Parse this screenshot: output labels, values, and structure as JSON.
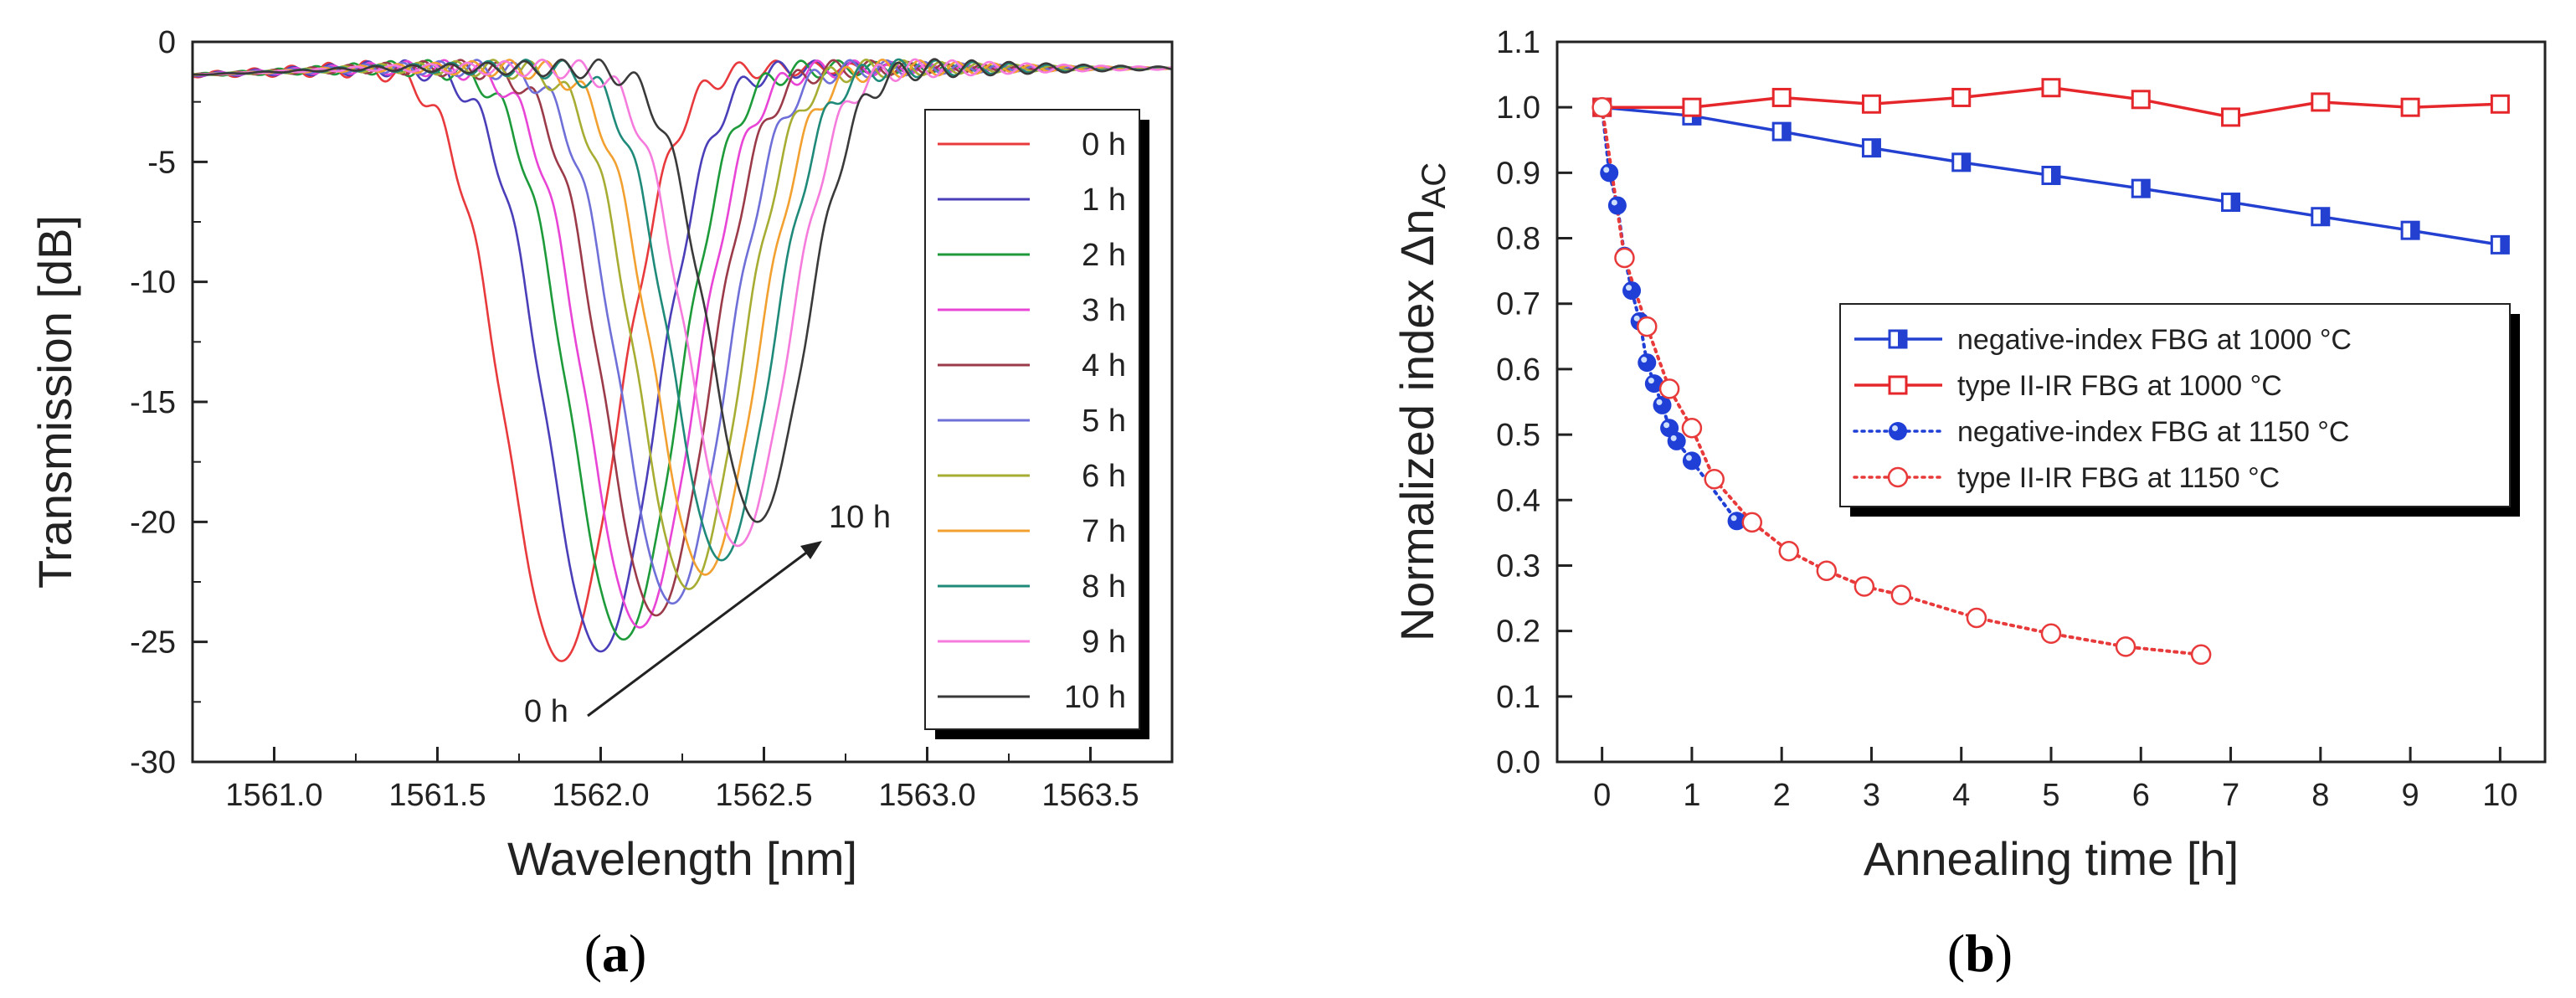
{
  "chart_data": [
    {
      "type": "line",
      "panel_label_open": "(",
      "panel_label_letter": "a",
      "panel_label_close": ")",
      "xlabel": "Wavelength [nm]",
      "ylabel": "Transmission [dB]",
      "xlim": [
        1560.75,
        1563.75
      ],
      "ylim": [
        -30,
        0
      ],
      "x_ticks": [
        1561.0,
        1561.5,
        1562.0,
        1562.5,
        1563.0,
        1563.5
      ],
      "x_tick_labels": [
        "1561.0",
        "1561.5",
        "1562.0",
        "1562.5",
        "1563.0",
        "1563.5"
      ],
      "y_ticks": [
        0,
        -5,
        -10,
        -15,
        -20,
        -25,
        -30
      ],
      "y_tick_labels": [
        "0",
        "-5",
        "-10",
        "-15",
        "-20",
        "-25",
        "-30"
      ],
      "series": [
        {
          "name": "0 h",
          "color": "#e8393c",
          "center": 1561.88,
          "depth": -25.8,
          "fwhm": 0.4
        },
        {
          "name": "1 h",
          "color": "#4a3fb8",
          "center": 1562.0,
          "depth": -25.4,
          "fwhm": 0.39
        },
        {
          "name": "2 h",
          "color": "#1d9a3a",
          "center": 1562.07,
          "depth": -24.9,
          "fwhm": 0.38
        },
        {
          "name": "3 h",
          "color": "#e844d6",
          "center": 1562.12,
          "depth": -24.4,
          "fwhm": 0.38
        },
        {
          "name": "4 h",
          "color": "#9b3b4a",
          "center": 1562.17,
          "depth": -23.9,
          "fwhm": 0.37
        },
        {
          "name": "5 h",
          "color": "#6f6fd8",
          "center": 1562.22,
          "depth": -23.4,
          "fwhm": 0.37
        },
        {
          "name": "6 h",
          "color": "#a7ad33",
          "center": 1562.27,
          "depth": -22.8,
          "fwhm": 0.36
        },
        {
          "name": "7 h",
          "color": "#f2a030",
          "center": 1562.32,
          "depth": -22.2,
          "fwhm": 0.36
        },
        {
          "name": "8 h",
          "color": "#1f8a7a",
          "center": 1562.37,
          "depth": -21.6,
          "fwhm": 0.35
        },
        {
          "name": "9 h",
          "color": "#f57bdc",
          "center": 1562.42,
          "depth": -21.0,
          "fwhm": 0.35
        },
        {
          "name": "10 h",
          "color": "#3a3a3a",
          "center": 1562.48,
          "depth": -20.0,
          "fwhm": 0.34
        }
      ],
      "annotations": [
        {
          "text": "10 h",
          "x": 1562.61,
          "y": -18.9
        },
        {
          "text": "0 h",
          "x": 1561.85,
          "y": -28.7
        }
      ],
      "legend_position": "right",
      "grid": false
    },
    {
      "type": "line",
      "panel_label_open": "(",
      "panel_label_letter": "b",
      "panel_label_close": ")",
      "xlabel": "Annealing time [h]",
      "ylabel_main": "Normalized index Δn",
      "ylabel_sub": "AC",
      "xlim": [
        -0.5,
        10.5
      ],
      "ylim": [
        0.0,
        1.1
      ],
      "x_ticks": [
        0,
        1,
        2,
        3,
        4,
        5,
        6,
        7,
        8,
        9,
        10
      ],
      "x_tick_labels": [
        "0",
        "1",
        "2",
        "3",
        "4",
        "5",
        "6",
        "7",
        "8",
        "9",
        "10"
      ],
      "y_ticks": [
        0.0,
        0.1,
        0.2,
        0.3,
        0.4,
        0.5,
        0.6,
        0.7,
        0.8,
        0.9,
        1.0,
        1.1
      ],
      "y_tick_labels": [
        "0.0",
        "0.1",
        "0.2",
        "0.3",
        "0.4",
        "0.5",
        "0.6",
        "0.7",
        "0.8",
        "0.9",
        "1.0",
        "1.1"
      ],
      "series": [
        {
          "name": "negative-index FBG at 1000 °C",
          "color": "#2340d0",
          "line": "solid",
          "marker": "half-square",
          "x": [
            0,
            1,
            2,
            3,
            4,
            5,
            6,
            7,
            8,
            9,
            10
          ],
          "y": [
            1.0,
            0.987,
            0.963,
            0.938,
            0.916,
            0.896,
            0.876,
            0.855,
            0.833,
            0.812,
            0.79
          ]
        },
        {
          "name": "type II-IR FBG at 1000 °C",
          "color": "#e5262b",
          "line": "solid",
          "marker": "open-square",
          "x": [
            0,
            1,
            2,
            3,
            4,
            5,
            6,
            7,
            8,
            9,
            10
          ],
          "y": [
            1.0,
            1.0,
            1.015,
            1.005,
            1.015,
            1.03,
            1.012,
            0.985,
            1.008,
            1.0,
            1.005
          ]
        },
        {
          "name": "negative-index FBG at 1150 °C",
          "color": "#1f3fd6",
          "line": "dotted",
          "marker": "filled-sphere",
          "x": [
            0,
            0.08,
            0.17,
            0.25,
            0.33,
            0.42,
            0.5,
            0.58,
            0.67,
            0.75,
            0.83,
            1.0,
            1.5
          ],
          "y": [
            1.0,
            0.9,
            0.85,
            0.773,
            0.72,
            0.673,
            0.61,
            0.578,
            0.545,
            0.51,
            0.49,
            0.46,
            0.368
          ]
        },
        {
          "name": "type II-IR FBG at 1150 °C",
          "color": "#e83a3a",
          "line": "dotted",
          "marker": "open-circle",
          "x": [
            0,
            0.25,
            0.5,
            0.75,
            1.0,
            1.25,
            1.67,
            2.08,
            2.5,
            2.92,
            3.33,
            4.17,
            5.0,
            5.83,
            6.67
          ],
          "y": [
            1.0,
            0.77,
            0.665,
            0.57,
            0.51,
            0.432,
            0.366,
            0.322,
            0.292,
            0.268,
            0.255,
            0.22,
            0.196,
            0.176,
            0.164
          ]
        }
      ],
      "legend_position": "center-right",
      "grid": false
    }
  ]
}
